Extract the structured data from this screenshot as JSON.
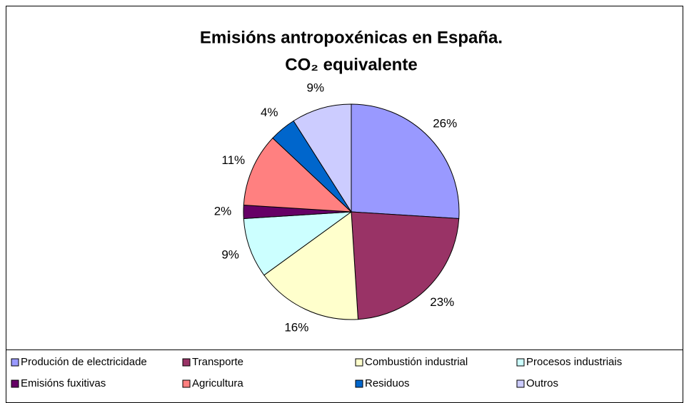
{
  "chart_data": {
    "type": "pie",
    "title": [
      "Emisións antropoxénicas en España.",
      "CO₂ equivalente"
    ],
    "categories": [
      "Produción de electricidade",
      "Transporte",
      "Combustión industrial",
      "Procesos industriais",
      "Emisións fuxitivas",
      "Agricultura",
      "Residuos",
      "Outros"
    ],
    "values": [
      26,
      23,
      16,
      9,
      2,
      11,
      4,
      9
    ],
    "value_labels": [
      "26%",
      "23%",
      "16%",
      "9%",
      "2%",
      "11%",
      "4%",
      "9%"
    ],
    "colors": [
      "#9999ff",
      "#993366",
      "#ffffcc",
      "#ccffff",
      "#660066",
      "#ff8080",
      "#0066cc",
      "#ccccff"
    ],
    "legend": "bottom"
  }
}
